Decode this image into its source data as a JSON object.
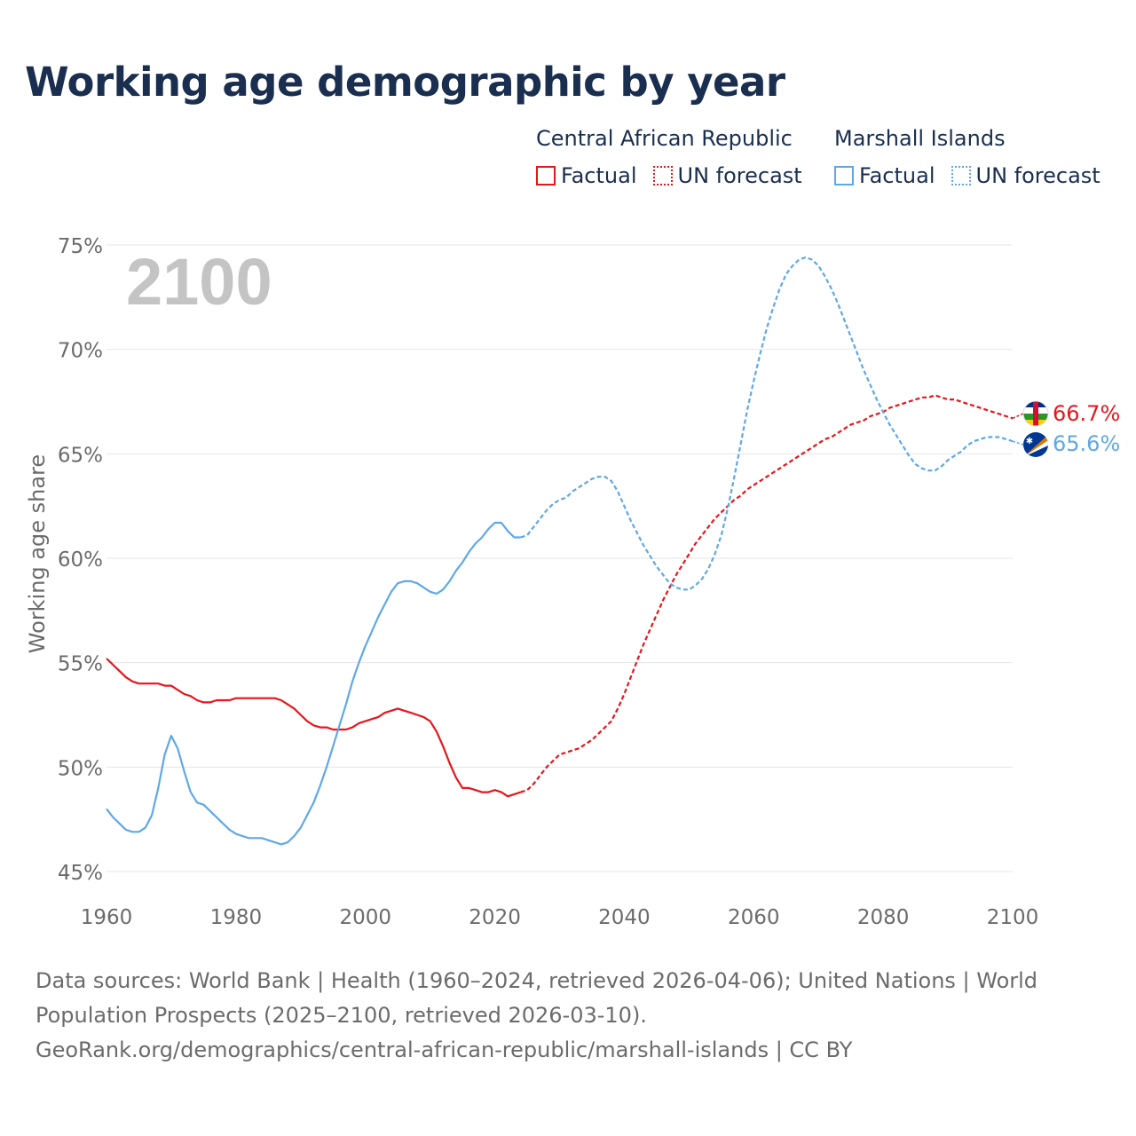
{
  "title": "Working age demographic by year",
  "legend": {
    "groups": [
      {
        "country": "Central African Republic",
        "factual_label": "Factual",
        "forecast_label": "UN forecast",
        "color": "#e8151b"
      },
      {
        "country": "Marshall Islands",
        "factual_label": "Factual",
        "forecast_label": "UN forecast",
        "color": "#5fa8e6"
      }
    ]
  },
  "sources": {
    "line1": "Data sources: World Bank | Health (1960–2024, retrieved 2026-04-06); United Nations | World",
    "line2": "Population Prospects (2025–2100, retrieved 2026-03-10).",
    "line3": "GeoRank.org/demographics/central-african-republic/marshall-islands | CC BY"
  },
  "chart_data": {
    "type": "line",
    "title": "Working age demographic by year",
    "year_label": "2100",
    "xlabel": "",
    "ylabel": "Working age share",
    "xlim": [
      1960,
      2100
    ],
    "ylim": [
      45,
      75
    ],
    "x_ticks": [
      "1960",
      "1980",
      "2000",
      "2020",
      "2040",
      "2060",
      "2080",
      "2100"
    ],
    "y_ticks": [
      "45%",
      "50%",
      "55%",
      "60%",
      "65%",
      "70%",
      "75%"
    ],
    "grid": true,
    "factual_end_year": 2024,
    "series": [
      {
        "name": "Central African Republic",
        "color": "#e8151b",
        "end_label": "66.7%",
        "points": [
          [
            1960,
            55.2
          ],
          [
            1961,
            54.9
          ],
          [
            1962,
            54.6
          ],
          [
            1963,
            54.3
          ],
          [
            1964,
            54.1
          ],
          [
            1965,
            54.0
          ],
          [
            1966,
            54.0
          ],
          [
            1967,
            54.0
          ],
          [
            1968,
            54.0
          ],
          [
            1969,
            53.9
          ],
          [
            1970,
            53.9
          ],
          [
            1971,
            53.7
          ],
          [
            1972,
            53.5
          ],
          [
            1973,
            53.4
          ],
          [
            1974,
            53.2
          ],
          [
            1975,
            53.1
          ],
          [
            1976,
            53.1
          ],
          [
            1977,
            53.2
          ],
          [
            1978,
            53.2
          ],
          [
            1979,
            53.2
          ],
          [
            1980,
            53.3
          ],
          [
            1981,
            53.3
          ],
          [
            1982,
            53.3
          ],
          [
            1983,
            53.3
          ],
          [
            1984,
            53.3
          ],
          [
            1985,
            53.3
          ],
          [
            1986,
            53.3
          ],
          [
            1987,
            53.2
          ],
          [
            1988,
            53.0
          ],
          [
            1989,
            52.8
          ],
          [
            1990,
            52.5
          ],
          [
            1991,
            52.2
          ],
          [
            1992,
            52.0
          ],
          [
            1993,
            51.9
          ],
          [
            1994,
            51.9
          ],
          [
            1995,
            51.8
          ],
          [
            1996,
            51.8
          ],
          [
            1997,
            51.8
          ],
          [
            1998,
            51.9
          ],
          [
            1999,
            52.1
          ],
          [
            2000,
            52.2
          ],
          [
            2001,
            52.3
          ],
          [
            2002,
            52.4
          ],
          [
            2003,
            52.6
          ],
          [
            2004,
            52.7
          ],
          [
            2005,
            52.8
          ],
          [
            2006,
            52.7
          ],
          [
            2007,
            52.6
          ],
          [
            2008,
            52.5
          ],
          [
            2009,
            52.4
          ],
          [
            2010,
            52.2
          ],
          [
            2011,
            51.7
          ],
          [
            2012,
            51.0
          ],
          [
            2013,
            50.2
          ],
          [
            2014,
            49.5
          ],
          [
            2015,
            49.0
          ],
          [
            2016,
            49.0
          ],
          [
            2017,
            48.9
          ],
          [
            2018,
            48.8
          ],
          [
            2019,
            48.8
          ],
          [
            2020,
            48.9
          ],
          [
            2021,
            48.8
          ],
          [
            2022,
            48.6
          ],
          [
            2023,
            48.7
          ],
          [
            2024,
            48.8
          ],
          [
            2025,
            48.9
          ],
          [
            2026,
            49.2
          ],
          [
            2027,
            49.6
          ],
          [
            2028,
            50.0
          ],
          [
            2029,
            50.3
          ],
          [
            2030,
            50.6
          ],
          [
            2031,
            50.7
          ],
          [
            2032,
            50.8
          ],
          [
            2033,
            50.9
          ],
          [
            2034,
            51.1
          ],
          [
            2035,
            51.3
          ],
          [
            2036,
            51.6
          ],
          [
            2037,
            51.9
          ],
          [
            2038,
            52.2
          ],
          [
            2039,
            52.8
          ],
          [
            2040,
            53.5
          ],
          [
            2041,
            54.3
          ],
          [
            2042,
            55.1
          ],
          [
            2043,
            55.9
          ],
          [
            2044,
            56.6
          ],
          [
            2045,
            57.3
          ],
          [
            2046,
            58.0
          ],
          [
            2047,
            58.6
          ],
          [
            2048,
            59.2
          ],
          [
            2049,
            59.7
          ],
          [
            2050,
            60.2
          ],
          [
            2051,
            60.7
          ],
          [
            2052,
            61.1
          ],
          [
            2053,
            61.5
          ],
          [
            2054,
            61.9
          ],
          [
            2055,
            62.2
          ],
          [
            2056,
            62.5
          ],
          [
            2057,
            62.8
          ],
          [
            2058,
            63.0
          ],
          [
            2059,
            63.3
          ],
          [
            2060,
            63.5
          ],
          [
            2061,
            63.7
          ],
          [
            2062,
            63.9
          ],
          [
            2063,
            64.1
          ],
          [
            2064,
            64.3
          ],
          [
            2065,
            64.5
          ],
          [
            2066,
            64.7
          ],
          [
            2067,
            64.9
          ],
          [
            2068,
            65.1
          ],
          [
            2069,
            65.3
          ],
          [
            2070,
            65.5
          ],
          [
            2071,
            65.7
          ],
          [
            2072,
            65.8
          ],
          [
            2073,
            66.0
          ],
          [
            2074,
            66.2
          ],
          [
            2075,
            66.4
          ],
          [
            2076,
            66.5
          ],
          [
            2077,
            66.6
          ],
          [
            2078,
            66.8
          ],
          [
            2079,
            66.9
          ],
          [
            2080,
            67.0
          ],
          [
            2081,
            67.2
          ],
          [
            2082,
            67.3
          ],
          [
            2083,
            67.4
          ],
          [
            2084,
            67.5
          ],
          [
            2085,
            67.6
          ],
          [
            2086,
            67.7
          ],
          [
            2087,
            67.7
          ],
          [
            2088,
            67.8
          ],
          [
            2089,
            67.7
          ],
          [
            2090,
            67.6
          ],
          [
            2091,
            67.6
          ],
          [
            2092,
            67.5
          ],
          [
            2093,
            67.4
          ],
          [
            2094,
            67.3
          ],
          [
            2095,
            67.2
          ],
          [
            2096,
            67.1
          ],
          [
            2097,
            67.0
          ],
          [
            2098,
            66.9
          ],
          [
            2099,
            66.8
          ],
          [
            2100,
            66.7
          ]
        ]
      },
      {
        "name": "Marshall Islands",
        "color": "#5fa8e6",
        "end_label": "65.6%",
        "points": [
          [
            1960,
            48.0
          ],
          [
            1961,
            47.6
          ],
          [
            1962,
            47.3
          ],
          [
            1963,
            47.0
          ],
          [
            1964,
            46.9
          ],
          [
            1965,
            46.9
          ],
          [
            1966,
            47.1
          ],
          [
            1967,
            47.7
          ],
          [
            1968,
            49.0
          ],
          [
            1969,
            50.6
          ],
          [
            1970,
            51.5
          ],
          [
            1971,
            50.9
          ],
          [
            1972,
            49.8
          ],
          [
            1973,
            48.8
          ],
          [
            1974,
            48.3
          ],
          [
            1975,
            48.2
          ],
          [
            1976,
            47.9
          ],
          [
            1977,
            47.6
          ],
          [
            1978,
            47.3
          ],
          [
            1979,
            47.0
          ],
          [
            1980,
            46.8
          ],
          [
            1981,
            46.7
          ],
          [
            1982,
            46.6
          ],
          [
            1983,
            46.6
          ],
          [
            1984,
            46.6
          ],
          [
            1985,
            46.5
          ],
          [
            1986,
            46.4
          ],
          [
            1987,
            46.3
          ],
          [
            1988,
            46.4
          ],
          [
            1989,
            46.7
          ],
          [
            1990,
            47.1
          ],
          [
            1991,
            47.7
          ],
          [
            1992,
            48.3
          ],
          [
            1993,
            49.1
          ],
          [
            1994,
            50.0
          ],
          [
            1995,
            51.0
          ],
          [
            1996,
            52.0
          ],
          [
            1997,
            53.0
          ],
          [
            1998,
            54.1
          ],
          [
            1999,
            55.0
          ],
          [
            2000,
            55.8
          ],
          [
            2001,
            56.5
          ],
          [
            2002,
            57.2
          ],
          [
            2003,
            57.8
          ],
          [
            2004,
            58.4
          ],
          [
            2005,
            58.8
          ],
          [
            2006,
            58.9
          ],
          [
            2007,
            58.9
          ],
          [
            2008,
            58.8
          ],
          [
            2009,
            58.6
          ],
          [
            2010,
            58.4
          ],
          [
            2011,
            58.3
          ],
          [
            2012,
            58.5
          ],
          [
            2013,
            58.9
          ],
          [
            2014,
            59.4
          ],
          [
            2015,
            59.8
          ],
          [
            2016,
            60.3
          ],
          [
            2017,
            60.7
          ],
          [
            2018,
            61.0
          ],
          [
            2019,
            61.4
          ],
          [
            2020,
            61.7
          ],
          [
            2021,
            61.7
          ],
          [
            2022,
            61.3
          ],
          [
            2023,
            61.0
          ],
          [
            2024,
            61.0
          ],
          [
            2025,
            61.1
          ],
          [
            2026,
            61.5
          ],
          [
            2027,
            61.9
          ],
          [
            2028,
            62.3
          ],
          [
            2029,
            62.6
          ],
          [
            2030,
            62.8
          ],
          [
            2031,
            62.9
          ],
          [
            2032,
            63.2
          ],
          [
            2033,
            63.4
          ],
          [
            2034,
            63.6
          ],
          [
            2035,
            63.8
          ],
          [
            2036,
            63.9
          ],
          [
            2037,
            63.9
          ],
          [
            2038,
            63.7
          ],
          [
            2039,
            63.2
          ],
          [
            2040,
            62.5
          ],
          [
            2041,
            61.8
          ],
          [
            2042,
            61.2
          ],
          [
            2043,
            60.6
          ],
          [
            2044,
            60.1
          ],
          [
            2045,
            59.6
          ],
          [
            2046,
            59.2
          ],
          [
            2047,
            58.8
          ],
          [
            2048,
            58.6
          ],
          [
            2049,
            58.5
          ],
          [
            2050,
            58.5
          ],
          [
            2051,
            58.7
          ],
          [
            2052,
            59.0
          ],
          [
            2053,
            59.5
          ],
          [
            2054,
            60.2
          ],
          [
            2055,
            61.1
          ],
          [
            2056,
            62.4
          ],
          [
            2057,
            63.9
          ],
          [
            2058,
            65.5
          ],
          [
            2059,
            67.1
          ],
          [
            2060,
            68.5
          ],
          [
            2061,
            69.8
          ],
          [
            2062,
            71.0
          ],
          [
            2063,
            72.0
          ],
          [
            2064,
            72.9
          ],
          [
            2065,
            73.6
          ],
          [
            2066,
            74.0
          ],
          [
            2067,
            74.3
          ],
          [
            2068,
            74.4
          ],
          [
            2069,
            74.3
          ],
          [
            2070,
            74.0
          ],
          [
            2071,
            73.5
          ],
          [
            2072,
            72.9
          ],
          [
            2073,
            72.2
          ],
          [
            2074,
            71.4
          ],
          [
            2075,
            70.6
          ],
          [
            2076,
            69.8
          ],
          [
            2077,
            69.0
          ],
          [
            2078,
            68.3
          ],
          [
            2079,
            67.6
          ],
          [
            2080,
            67.0
          ],
          [
            2081,
            66.4
          ],
          [
            2082,
            65.9
          ],
          [
            2083,
            65.4
          ],
          [
            2084,
            64.9
          ],
          [
            2085,
            64.5
          ],
          [
            2086,
            64.3
          ],
          [
            2087,
            64.2
          ],
          [
            2088,
            64.2
          ],
          [
            2089,
            64.4
          ],
          [
            2090,
            64.7
          ],
          [
            2091,
            64.9
          ],
          [
            2092,
            65.1
          ],
          [
            2093,
            65.4
          ],
          [
            2094,
            65.6
          ],
          [
            2095,
            65.7
          ],
          [
            2096,
            65.8
          ],
          [
            2097,
            65.8
          ],
          [
            2098,
            65.8
          ],
          [
            2099,
            65.7
          ],
          [
            2100,
            65.6
          ]
        ]
      }
    ]
  }
}
